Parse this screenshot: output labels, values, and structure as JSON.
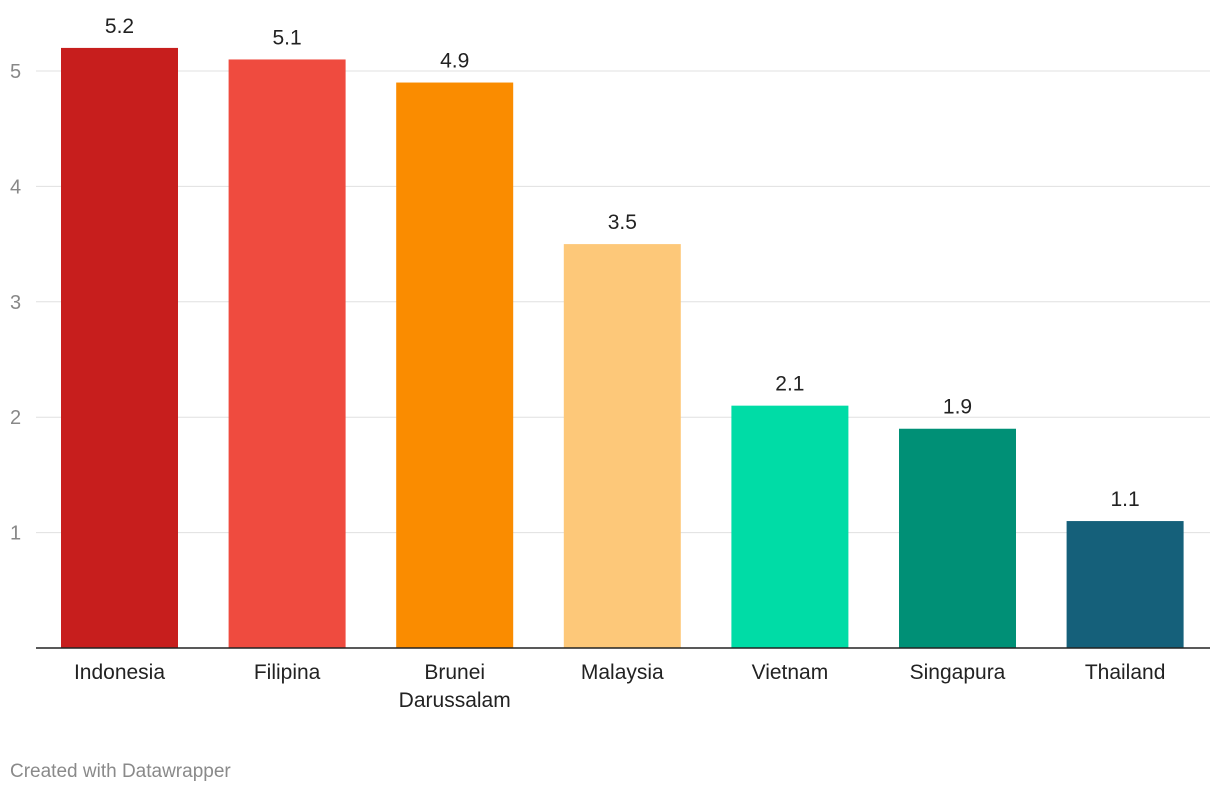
{
  "chart_data": {
    "type": "bar",
    "title": "",
    "xlabel": "",
    "ylabel": "",
    "categories": [
      "Indonesia",
      "Filipina",
      "Brunei Darussalam",
      "Malaysia",
      "Vietnam",
      "Singapura",
      "Thailand"
    ],
    "category_lines": [
      [
        "Indonesia"
      ],
      [
        "Filipina"
      ],
      [
        "Brunei",
        "Darussalam"
      ],
      [
        "Malaysia"
      ],
      [
        "Vietnam"
      ],
      [
        "Singapura"
      ],
      [
        "Thailand"
      ]
    ],
    "values": [
      5.2,
      5.1,
      4.9,
      3.5,
      2.1,
      1.9,
      1.1
    ],
    "value_labels": [
      "5.2",
      "5.1",
      "4.9",
      "3.5",
      "2.1",
      "1.9",
      "1.1"
    ],
    "colors": [
      "#c71e1d",
      "#ef4b3f",
      "#fa8c00",
      "#fdc879",
      "#00dca6",
      "#009076",
      "#15607a"
    ],
    "ylim": [
      0,
      5.5
    ],
    "yticks": [
      1,
      2,
      3,
      4,
      5
    ],
    "grid": true,
    "legend": "none"
  },
  "footer": {
    "credit": "Created with Datawrapper"
  }
}
